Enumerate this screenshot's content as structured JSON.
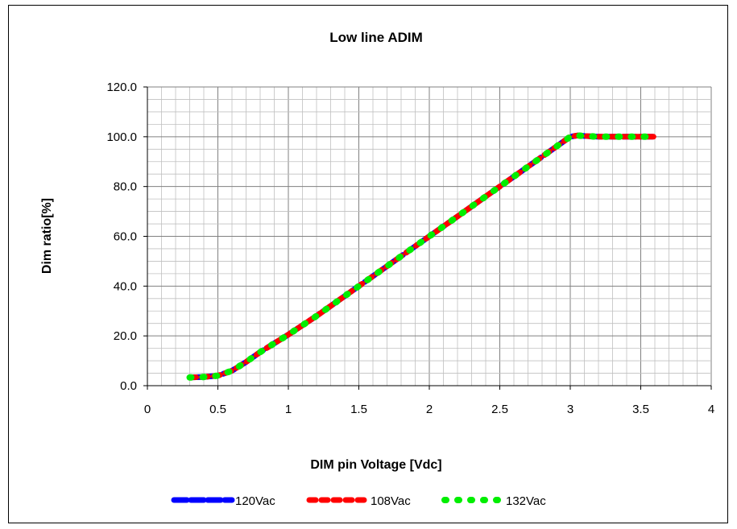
{
  "chart_data": {
    "type": "line",
    "title": "Low line ADIM",
    "xlabel": "DIM pin Voltage [Vdc]",
    "ylabel": "Dim ratio[%]",
    "xlim": [
      0,
      4
    ],
    "ylim": [
      0,
      120
    ],
    "x_ticks": [
      "0",
      "0.5",
      "1",
      "1.5",
      "2",
      "2.5",
      "3",
      "3.5",
      "4"
    ],
    "y_ticks": [
      "0.0",
      "20.0",
      "40.0",
      "60.0",
      "80.0",
      "100.0",
      "120.0"
    ],
    "grid": "major and minor",
    "legend_position": "bottom",
    "series": [
      {
        "name": "120Vac",
        "color": "#0000ff",
        "style": "long-dash",
        "x": [
          0.3,
          0.4,
          0.5,
          0.6,
          0.7,
          0.8,
          0.9,
          1.0,
          1.2,
          1.4,
          1.6,
          1.8,
          2.0,
          2.2,
          2.4,
          2.6,
          2.8,
          2.9,
          3.0,
          3.05,
          3.1,
          3.2,
          3.4,
          3.6
        ],
        "y": [
          3.3,
          3.5,
          4.0,
          6.0,
          9.5,
          13.5,
          17.0,
          20.5,
          28.0,
          36.0,
          44.0,
          52.0,
          60.0,
          68.0,
          76.0,
          84.0,
          92.0,
          96.0,
          100.0,
          100.5,
          100.3,
          100.0,
          100.0,
          100.0
        ]
      },
      {
        "name": "108Vac",
        "color": "#ff0000",
        "style": "dash",
        "x": [
          0.3,
          0.4,
          0.5,
          0.6,
          0.7,
          0.8,
          0.9,
          1.0,
          1.2,
          1.4,
          1.6,
          1.8,
          2.0,
          2.2,
          2.4,
          2.6,
          2.8,
          2.9,
          3.0,
          3.05,
          3.1,
          3.2,
          3.4,
          3.6
        ],
        "y": [
          3.3,
          3.5,
          4.0,
          6.0,
          9.5,
          13.5,
          17.0,
          20.5,
          28.0,
          36.0,
          44.0,
          52.0,
          60.0,
          68.0,
          76.0,
          84.0,
          92.0,
          96.0,
          100.0,
          100.5,
          100.3,
          100.0,
          100.0,
          100.0
        ]
      },
      {
        "name": "132Vac",
        "color": "#00ee00",
        "style": "round-dot",
        "x": [
          0.3,
          0.4,
          0.5,
          0.6,
          0.7,
          0.8,
          0.9,
          1.0,
          1.2,
          1.4,
          1.6,
          1.8,
          2.0,
          2.2,
          2.4,
          2.6,
          2.8,
          2.9,
          3.0,
          3.05,
          3.1,
          3.2,
          3.4,
          3.6
        ],
        "y": [
          3.3,
          3.5,
          4.0,
          6.0,
          9.5,
          13.5,
          17.0,
          20.5,
          28.0,
          36.0,
          44.0,
          52.0,
          60.0,
          68.0,
          76.0,
          84.0,
          92.0,
          96.0,
          100.0,
          100.5,
          100.3,
          100.0,
          100.0,
          100.0
        ]
      }
    ]
  }
}
